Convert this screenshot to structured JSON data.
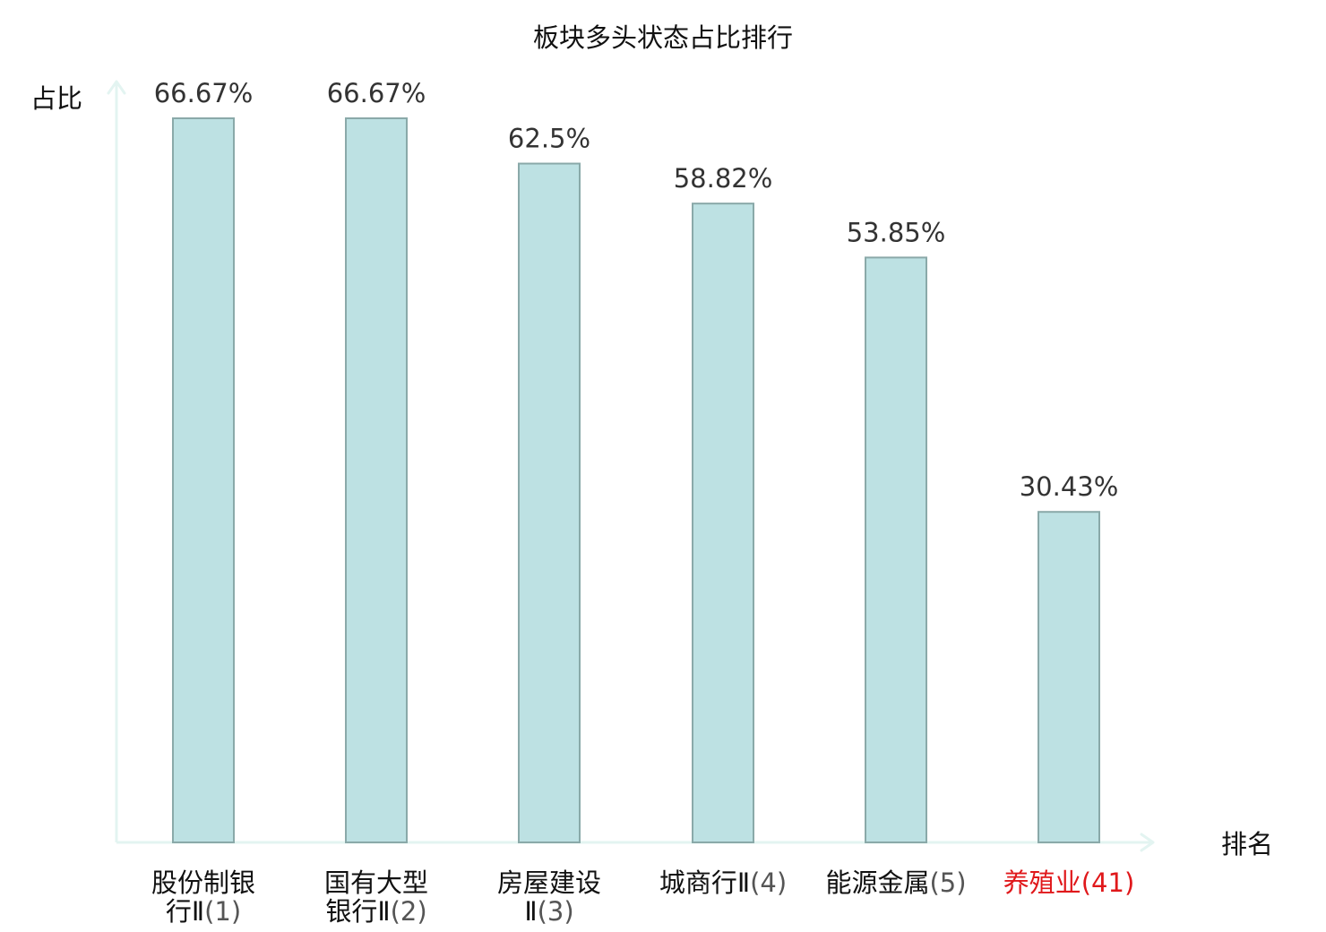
{
  "chart_data": {
    "type": "bar",
    "title": "板块多头状态占比排行",
    "ylabel": "占比",
    "xlabel": "排名",
    "ylim": [
      0,
      80
    ],
    "grid": false,
    "legend": "none",
    "categories": [
      {
        "name_lines": [
          "股份制银",
          "行Ⅱ"
        ],
        "rank": "(1)",
        "highlight": false
      },
      {
        "name_lines": [
          "国有大型",
          "银行Ⅱ"
        ],
        "rank": "(2)",
        "highlight": false
      },
      {
        "name_lines": [
          "房屋建设",
          "Ⅱ"
        ],
        "rank": "(3)",
        "highlight": false
      },
      {
        "name_lines": [
          "城商行Ⅱ"
        ],
        "rank": "(4)",
        "highlight": false
      },
      {
        "name_lines": [
          "能源金属"
        ],
        "rank": "(5)",
        "highlight": false
      },
      {
        "name_lines": [
          "养殖业"
        ],
        "rank": "(41)",
        "highlight": true
      }
    ],
    "values": [
      66.67,
      66.67,
      62.5,
      58.82,
      53.85,
      30.43
    ],
    "value_labels": [
      "66.67%",
      "66.67%",
      "62.5%",
      "58.82%",
      "53.85%",
      "30.43%"
    ]
  },
  "colors": {
    "bar_fill": "#bde1e3",
    "bar_stroke": "#8aa9a9",
    "axis": "#e3f4f1",
    "label_text": "#111111",
    "rank_text": "#555555",
    "highlight": "#e0181b"
  }
}
